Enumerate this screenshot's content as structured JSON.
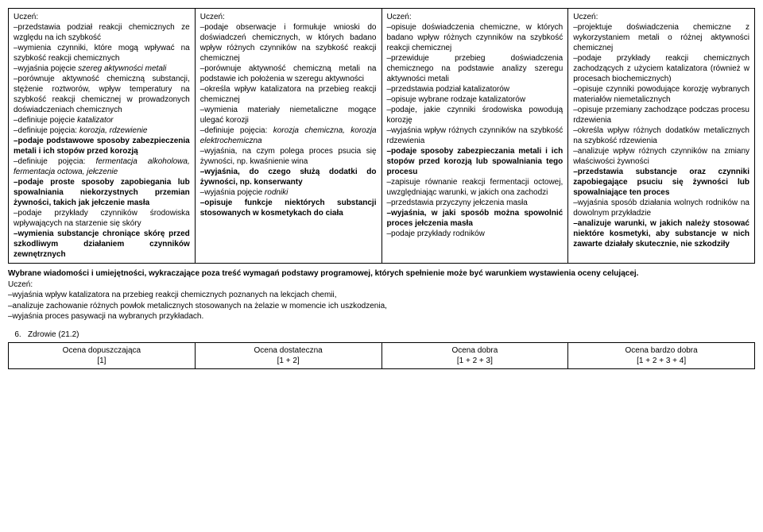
{
  "main_table": {
    "col1": {
      "header": "Uczeń:",
      "body": "–przedstawia podział reakcji chemicznych ze względu na ich szybkość\n–wymienia czynniki, które mogą wpływać na szybkość reakcji chemicznych\n–wyjaśnia pojęcie <em>szereg aktywności metali</em>\n–porównuje aktywność chemiczną substancji, stężenie roztworów, wpływ temperatury na szybkość reakcji chemicznej w prowadzonych doświadczeniach chemicznych\n–definiuje pojęcie <em>katalizator</em>\n–definiuje pojęcia: <em>korozja, rdzewienie</em>\n<b>–podaje podstawowe sposoby zabezpieczenia metali i ich stopów przed korozją</b>\n–definiuje pojęcia: <em>fermentacja alkoholowa, fermentacja octowa, jełczenie</em>\n<b>–podaje proste sposoby zapobiegania lub spowalniania niekorzystnych przemian żywności, takich jak jełczenie masła</b>\n–podaje przykłady czynników środowiska wpływających na starzenie się skóry\n<b>–wymienia substancje chroniące skórę przed szkodliwym działaniem czynników zewnętrznych</b>"
    },
    "col2": {
      "header": "Uczeń:",
      "body": "–podaje obserwacje i formułuje wnioski do doświadczeń chemicznych, w których badano wpływ różnych czynników na szybkość reakcji chemicznej\n–porównuje aktywność chemiczną metali na podstawie ich położenia w szeregu aktywności\n–określa wpływ katalizatora na przebieg reakcji chemicznej\n–wymienia materiały niemetaliczne mogące ulegać korozji\n–definiuje pojęcia: <em>korozja chemiczna, korozja elektrochemiczna</em>\n–wyjaśnia, na czym polega proces psucia się żywności, np. kwaśnienie wina\n<b>–wyjaśnia, do czego służą dodatki do żywności, np. konserwanty</b>\n–wyjaśnia pojęcie <em>rodniki</em>\n<b>–opisuje funkcje niektórych substancji stosowanych w kosmetykach do ciała</b>"
    },
    "col3": {
      "header": "Uczeń:",
      "body": "–opisuje doświadczenia chemiczne, w których badano wpływ różnych czynników na szybkość reakcji chemicznej\n–przewiduje przebieg doświadczenia chemicznego na podstawie analizy szeregu aktywności metali\n–przedstawia podział katalizatorów\n–opisuje wybrane rodzaje katalizatorów\n–podaje, jakie czynniki środowiska powodują korozję\n–wyjaśnia wpływ różnych czynników na szybkość rdzewienia\n<b>–podaje sposoby zabezpieczania metali i ich stopów przed korozją lub spowalniania tego procesu</b>\n–zapisuje równanie reakcji fermentacji octowej, uwzględniając warunki, w jakich ona zachodzi\n–przedstawia przyczyny jełczenia masła\n<b>–wyjaśnia, w jaki sposób można spowolnić proces jełczenia masła</b>\n–podaje przykłady rodników"
    },
    "col4": {
      "header": "Uczeń:",
      "body": "–projektuje doświadczenia chemiczne z wykorzystaniem metali o różnej aktywności chemicznej\n–podaje przykłady reakcji chemicznych zachodzących z użyciem katalizatora (również w procesach biochemicznych)\n–opisuje czynniki powodujące korozję wybranych materiałów niemetalicznych\n–opisuje przemiany zachodzące podczas procesu rdzewienia\n–określa wpływ różnych dodatków metalicznych na szybkość rdzewienia\n–analizuje wpływ różnych czynników na zmiany właściwości żywności\n<b>–przedstawia substancje oraz czynniki zapobiegające psuciu się żywności lub spowalniające ten proces</b>\n–wyjaśnia sposób działania wolnych rodników na dowolnym przykładzie\n<b>–analizuje warunki, w jakich należy stosować niektóre kosmetyki, aby substancje w nich zawarte działały skutecznie, nie szkodziły</b>"
    }
  },
  "outcomes": {
    "intro": "Wybrane wiadomości i umiejętności, wykraczające poza treść wymagań podstawy programowej, których spełnienie może być warunkiem wystawienia oceny celującej.",
    "label": "Uczeń:",
    "items": "–wyjaśnia wpływ katalizatora na przebieg reakcji chemicznych poznanych na lekcjach chemii,\n–analizuje zachowanie różnych powłok metalicznych stosowanych na żelazie w momencie ich uszkodzenia,\n–wyjaśnia proces pasywacji na wybranych przykładach."
  },
  "section": {
    "num": "6.",
    "title": "Zdrowie (21.2)"
  },
  "grades_table": {
    "c1": {
      "line1": "Ocena dopuszczająca",
      "line2": "[1]"
    },
    "c2": {
      "line1": "Ocena dostateczna",
      "line2": "[1 + 2]"
    },
    "c3": {
      "line1": "Ocena dobra",
      "line2": "[1 + 2 + 3]"
    },
    "c4": {
      "line1": "Ocena bardzo dobra",
      "line2": "[1 + 2 + 3 + 4]"
    }
  }
}
